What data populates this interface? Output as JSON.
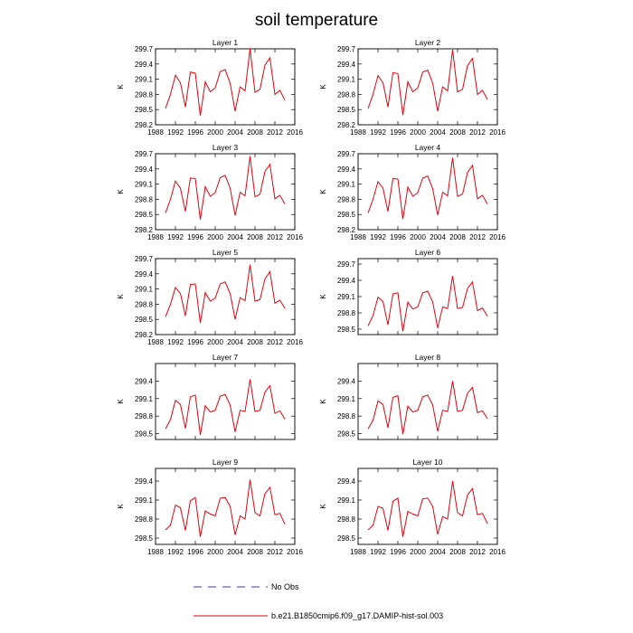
{
  "title": "soil temperature",
  "colors": {
    "model": "#e8000b",
    "obs": "#3a3aa0",
    "axis": "#000000"
  },
  "legend": {
    "obs_label": "No Obs",
    "model_label": "b.e21.B1850cmip6.f09_g17.DAMIP-hist-sol.003"
  },
  "chart_data": [
    {
      "type": "line",
      "title": "Layer 1",
      "xlabel": "",
      "ylabel": "K",
      "xlim": [
        1988,
        2016
      ],
      "ylim": [
        298.2,
        299.7
      ],
      "xticks": [
        1988,
        1992,
        1996,
        2000,
        2004,
        2008,
        2012,
        2016
      ],
      "yticks": [
        298.2,
        298.5,
        298.8,
        299.1,
        299.4,
        299.7
      ],
      "x": [
        1990,
        1991,
        1992,
        1993,
        1994,
        1995,
        1996,
        1997,
        1998,
        1999,
        2000,
        2001,
        2002,
        2003,
        2004,
        2005,
        2006,
        2007,
        2008,
        2009,
        2010,
        2011,
        2012,
        2013,
        2014
      ],
      "series": [
        {
          "name": "b.e21.B1850cmip6.f09_g17.DAMIP-hist-sol.003",
          "values": [
            298.52,
            298.8,
            299.18,
            299.03,
            298.55,
            299.24,
            299.22,
            298.38,
            299.05,
            298.85,
            298.93,
            299.25,
            299.29,
            299.02,
            298.47,
            298.95,
            298.87,
            299.7,
            298.84,
            298.9,
            299.38,
            299.52,
            298.8,
            298.88,
            298.69
          ]
        }
      ]
    },
    {
      "type": "line",
      "title": "Layer 2",
      "xlabel": "",
      "ylabel": "K",
      "xlim": [
        1988,
        2016
      ],
      "ylim": [
        298.2,
        299.7
      ],
      "xticks": [
        1988,
        1992,
        1996,
        2000,
        2004,
        2008,
        2012,
        2016
      ],
      "yticks": [
        298.2,
        298.5,
        298.8,
        299.1,
        299.4,
        299.7
      ],
      "x": [
        1990,
        1991,
        1992,
        1993,
        1994,
        1995,
        1996,
        1997,
        1998,
        1999,
        2000,
        2001,
        2002,
        2003,
        2004,
        2005,
        2006,
        2007,
        2008,
        2009,
        2010,
        2011,
        2012,
        2013,
        2014
      ],
      "series": [
        {
          "name": "b.e21.B1850cmip6.f09_g17.DAMIP-hist-sol.003",
          "values": [
            298.52,
            298.8,
            299.17,
            299.03,
            298.55,
            299.23,
            299.21,
            298.39,
            299.05,
            298.85,
            298.93,
            299.24,
            299.28,
            299.02,
            298.47,
            298.95,
            298.87,
            299.68,
            298.85,
            298.9,
            299.37,
            299.51,
            298.8,
            298.88,
            298.7
          ]
        }
      ]
    },
    {
      "type": "line",
      "title": "Layer 3",
      "xlabel": "",
      "ylabel": "K",
      "xlim": [
        1988,
        2016
      ],
      "ylim": [
        298.2,
        299.7
      ],
      "xticks": [
        1988,
        1992,
        1996,
        2000,
        2004,
        2008,
        2012,
        2016
      ],
      "yticks": [
        298.2,
        298.5,
        298.8,
        299.1,
        299.4,
        299.7
      ],
      "x": [
        1990,
        1991,
        1992,
        1993,
        1994,
        1995,
        1996,
        1997,
        1998,
        1999,
        2000,
        2001,
        2002,
        2003,
        2004,
        2005,
        2006,
        2007,
        2008,
        2009,
        2010,
        2011,
        2012,
        2013,
        2014
      ],
      "series": [
        {
          "name": "b.e21.B1850cmip6.f09_g17.DAMIP-hist-sol.003",
          "values": [
            298.53,
            298.8,
            299.16,
            299.02,
            298.56,
            299.22,
            299.21,
            298.4,
            299.05,
            298.86,
            298.93,
            299.23,
            299.27,
            299.02,
            298.48,
            298.94,
            298.87,
            299.65,
            298.85,
            298.9,
            299.35,
            299.49,
            298.81,
            298.88,
            298.71
          ]
        }
      ]
    },
    {
      "type": "line",
      "title": "Layer 4",
      "xlabel": "",
      "ylabel": "K",
      "xlim": [
        1988,
        2016
      ],
      "ylim": [
        298.2,
        299.7
      ],
      "xticks": [
        1988,
        1992,
        1996,
        2000,
        2004,
        2008,
        2012,
        2016
      ],
      "yticks": [
        298.2,
        298.5,
        298.8,
        299.1,
        299.4,
        299.7
      ],
      "x": [
        1990,
        1991,
        1992,
        1993,
        1994,
        1995,
        1996,
        1997,
        1998,
        1999,
        2000,
        2001,
        2002,
        2003,
        2004,
        2005,
        2006,
        2007,
        2008,
        2009,
        2010,
        2011,
        2012,
        2013,
        2014
      ],
      "series": [
        {
          "name": "b.e21.B1850cmip6.f09_g17.DAMIP-hist-sol.003",
          "values": [
            298.53,
            298.8,
            299.15,
            299.02,
            298.56,
            299.21,
            299.2,
            298.41,
            299.04,
            298.86,
            298.93,
            299.22,
            299.26,
            299.01,
            298.49,
            298.94,
            298.87,
            299.62,
            298.86,
            298.9,
            299.33,
            299.47,
            298.81,
            298.88,
            298.71
          ]
        }
      ]
    },
    {
      "type": "line",
      "title": "Layer 5",
      "xlabel": "",
      "ylabel": "K",
      "xlim": [
        1988,
        2016
      ],
      "ylim": [
        298.2,
        299.7
      ],
      "xticks": [
        1988,
        1992,
        1996,
        2000,
        2004,
        2008,
        2012,
        2016
      ],
      "yticks": [
        298.2,
        298.5,
        298.8,
        299.1,
        299.4,
        299.7
      ],
      "x": [
        1990,
        1991,
        1992,
        1993,
        1994,
        1995,
        1996,
        1997,
        1998,
        1999,
        2000,
        2001,
        2002,
        2003,
        2004,
        2005,
        2006,
        2007,
        2008,
        2009,
        2010,
        2011,
        2012,
        2013,
        2014
      ],
      "series": [
        {
          "name": "b.e21.B1850cmip6.f09_g17.DAMIP-hist-sol.003",
          "values": [
            298.55,
            298.8,
            299.13,
            299.01,
            298.57,
            299.19,
            299.2,
            298.43,
            299.03,
            298.86,
            298.92,
            299.2,
            299.24,
            299.01,
            298.5,
            298.93,
            298.87,
            299.58,
            298.86,
            298.89,
            299.3,
            299.44,
            298.82,
            298.88,
            298.72
          ]
        }
      ]
    },
    {
      "type": "line",
      "title": "Layer 6",
      "xlabel": "",
      "ylabel": "K",
      "xlim": [
        1988,
        2016
      ],
      "ylim": [
        298.4,
        299.8
      ],
      "xticks": [
        1988,
        1992,
        1996,
        2000,
        2004,
        2008,
        2012,
        2016
      ],
      "yticks": [
        298.5,
        298.8,
        299.1,
        299.4,
        299.7
      ],
      "x": [
        1990,
        1991,
        1992,
        1993,
        1994,
        1995,
        1996,
        1997,
        1998,
        1999,
        2000,
        2001,
        2002,
        2003,
        2004,
        2005,
        2006,
        2007,
        2008,
        2009,
        2010,
        2011,
        2012,
        2013,
        2014
      ],
      "series": [
        {
          "name": "b.e21.B1850cmip6.f09_g17.DAMIP-hist-sol.003",
          "values": [
            298.56,
            298.75,
            299.09,
            299.01,
            298.58,
            299.15,
            299.17,
            298.46,
            299.0,
            298.87,
            298.91,
            299.17,
            299.2,
            299.0,
            298.52,
            298.91,
            298.88,
            299.48,
            298.88,
            298.9,
            299.25,
            299.37,
            298.84,
            298.89,
            298.74
          ]
        }
      ]
    },
    {
      "type": "line",
      "title": "Layer 7",
      "xlabel": "",
      "ylabel": "K",
      "xlim": [
        1988,
        2016
      ],
      "ylim": [
        298.4,
        299.7
      ],
      "xticks": [
        1988,
        1992,
        1996,
        2000,
        2004,
        2008,
        2012,
        2016
      ],
      "yticks": [
        298.5,
        298.8,
        299.1,
        299.4
      ],
      "x": [
        1990,
        1991,
        1992,
        1993,
        1994,
        1995,
        1996,
        1997,
        1998,
        1999,
        2000,
        2001,
        2002,
        2003,
        2004,
        2005,
        2006,
        2007,
        2008,
        2009,
        2010,
        2011,
        2012,
        2013,
        2014
      ],
      "series": [
        {
          "name": "b.e21.B1850cmip6.f09_g17.DAMIP-hist-sol.003",
          "values": [
            298.58,
            298.74,
            299.07,
            299.0,
            298.59,
            299.13,
            299.16,
            298.48,
            298.98,
            298.87,
            298.9,
            299.14,
            299.17,
            298.99,
            298.53,
            298.9,
            298.88,
            299.43,
            298.88,
            298.9,
            299.21,
            299.32,
            298.85,
            298.89,
            298.75
          ]
        }
      ]
    },
    {
      "type": "line",
      "title": "Layer 8",
      "xlabel": "",
      "ylabel": "K",
      "xlim": [
        1988,
        2016
      ],
      "ylim": [
        298.4,
        299.7
      ],
      "xticks": [
        1988,
        1992,
        1996,
        2000,
        2004,
        2008,
        2012,
        2016
      ],
      "yticks": [
        298.5,
        298.8,
        299.1,
        299.4
      ],
      "x": [
        1990,
        1991,
        1992,
        1993,
        1994,
        1995,
        1996,
        1997,
        1998,
        1999,
        2000,
        2001,
        2002,
        2003,
        2004,
        2005,
        2006,
        2007,
        2008,
        2009,
        2010,
        2011,
        2012,
        2013,
        2014
      ],
      "series": [
        {
          "name": "b.e21.B1850cmip6.f09_g17.DAMIP-hist-sol.003",
          "values": [
            298.58,
            298.73,
            299.06,
            299.0,
            298.6,
            299.12,
            299.15,
            298.49,
            298.97,
            298.87,
            298.9,
            299.13,
            299.16,
            298.99,
            298.54,
            298.9,
            298.88,
            299.4,
            298.88,
            298.9,
            299.19,
            299.29,
            298.86,
            298.89,
            298.76
          ]
        }
      ]
    },
    {
      "type": "line",
      "title": "Layer 9",
      "xlabel": "",
      "ylabel": "K",
      "xlim": [
        1988,
        2016
      ],
      "ylim": [
        298.4,
        299.6
      ],
      "xticks": [
        1988,
        1992,
        1996,
        2000,
        2004,
        2008,
        2012,
        2016
      ],
      "yticks": [
        298.5,
        298.8,
        299.1,
        299.4
      ],
      "x": [
        1990,
        1991,
        1992,
        1993,
        1994,
        1995,
        1996,
        1997,
        1998,
        1999,
        2000,
        2001,
        2002,
        2003,
        2004,
        2005,
        2006,
        2007,
        2008,
        2009,
        2010,
        2011,
        2012,
        2013,
        2014
      ],
      "series": [
        {
          "name": "b.e21.B1850cmip6.f09_g17.DAMIP-hist-sol.003",
          "values": [
            298.63,
            298.7,
            299.02,
            298.98,
            298.62,
            299.09,
            299.14,
            298.52,
            298.93,
            298.88,
            298.85,
            299.13,
            299.14,
            299.0,
            298.55,
            298.85,
            298.8,
            299.42,
            298.9,
            298.85,
            299.2,
            299.3,
            298.87,
            298.89,
            298.72
          ]
        }
      ]
    },
    {
      "type": "line",
      "title": "Layer 10",
      "xlabel": "",
      "ylabel": "K",
      "xlim": [
        1988,
        2016
      ],
      "ylim": [
        298.4,
        299.6
      ],
      "xticks": [
        1988,
        1992,
        1996,
        2000,
        2004,
        2008,
        2012,
        2016
      ],
      "yticks": [
        298.5,
        298.8,
        299.1,
        299.4
      ],
      "x": [
        1990,
        1991,
        1992,
        1993,
        1994,
        1995,
        1996,
        1997,
        1998,
        1999,
        2000,
        2001,
        2002,
        2003,
        2004,
        2005,
        2006,
        2007,
        2008,
        2009,
        2010,
        2011,
        2012,
        2013,
        2014
      ],
      "series": [
        {
          "name": "b.e21.B1850cmip6.f09_g17.DAMIP-hist-sol.003",
          "values": [
            298.63,
            298.7,
            299.0,
            298.97,
            298.62,
            299.08,
            299.13,
            298.52,
            298.92,
            298.88,
            298.85,
            299.12,
            299.13,
            299.0,
            298.56,
            298.84,
            298.8,
            299.4,
            298.9,
            298.85,
            299.18,
            299.28,
            298.87,
            298.89,
            298.73
          ]
        }
      ]
    }
  ]
}
